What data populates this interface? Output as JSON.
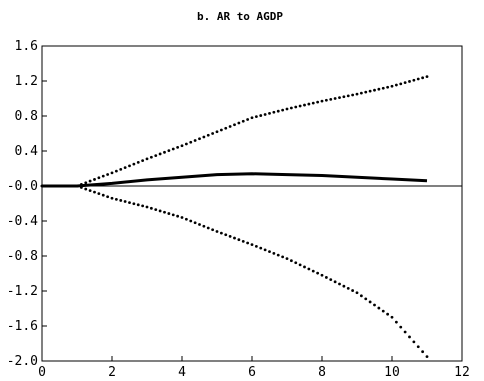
{
  "chart_data": {
    "type": "line",
    "title": "b. AR to AGDP",
    "xlabel": "",
    "ylabel": "",
    "xlim": [
      0,
      12
    ],
    "ylim": [
      -2.0,
      1.6
    ],
    "x_ticks": [
      0,
      2,
      4,
      6,
      8,
      10,
      12
    ],
    "x_tick_labels": [
      "0",
      "2",
      "4",
      "6",
      "8",
      "10",
      "12"
    ],
    "y_ticks": [
      1.6,
      1.2,
      0.8,
      0.4,
      0.0,
      -0.4,
      -0.8,
      -1.2,
      -1.6,
      -2.0
    ],
    "y_tick_labels": [
      "1.6",
      "1.2",
      "0.8",
      "0.4",
      "-0.0",
      "-0.4",
      "-0.8",
      "-1.2",
      "-1.6",
      "-2.0"
    ],
    "zero_line": true,
    "grid": false,
    "series": [
      {
        "style": "solid-thick",
        "x": [
          0,
          1,
          2,
          3,
          4,
          5,
          6,
          7,
          8,
          9,
          10,
          11
        ],
        "y": [
          0.0,
          0.0,
          0.03,
          0.07,
          0.1,
          0.13,
          0.14,
          0.13,
          0.12,
          0.1,
          0.08,
          0.06
        ]
      },
      {
        "style": "dotted",
        "x": [
          0,
          1,
          2,
          3,
          4,
          5,
          6,
          7,
          8,
          9,
          10,
          11
        ],
        "y": [
          0.0,
          0.0,
          0.15,
          0.31,
          0.46,
          0.62,
          0.78,
          0.88,
          0.97,
          1.05,
          1.14,
          1.25
        ]
      },
      {
        "style": "dotted",
        "x": [
          0,
          1,
          2,
          3,
          4,
          5,
          6,
          7,
          8,
          9,
          10,
          11
        ],
        "y": [
          0.0,
          0.0,
          -0.14,
          -0.24,
          -0.36,
          -0.52,
          -0.67,
          -0.83,
          -1.02,
          -1.22,
          -1.5,
          -1.95
        ]
      }
    ]
  }
}
